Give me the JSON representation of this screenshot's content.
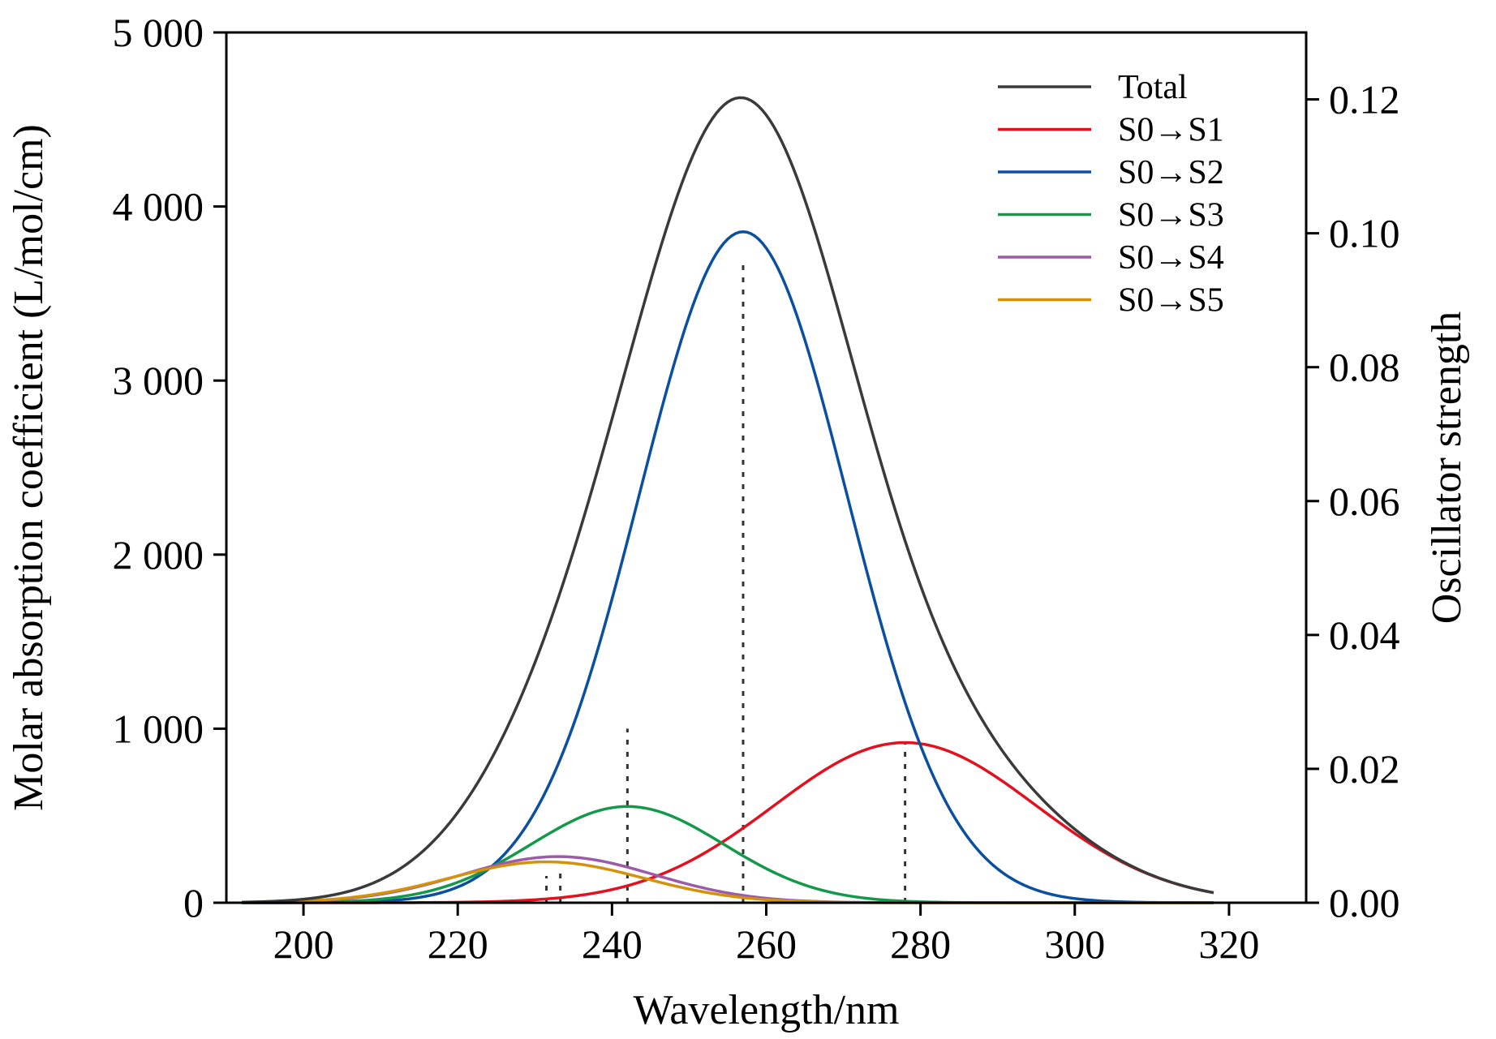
{
  "chart_data": {
    "type": "line",
    "title": "",
    "xlabel": "Wavelength/nm",
    "ylabel": "Molar absorption coefficient (L/mol/cm)",
    "y2label": "Oscillator strength",
    "xlim": [
      190,
      330
    ],
    "ylim": [
      0,
      5000
    ],
    "y2lim": [
      0,
      0.13
    ],
    "x_ticks": [
      200,
      220,
      240,
      260,
      280,
      300,
      320
    ],
    "x_tick_labels": [
      "200",
      "220",
      "240",
      "260",
      "280",
      "300",
      "320"
    ],
    "y_ticks": [
      0,
      1000,
      2000,
      3000,
      4000,
      5000
    ],
    "y_tick_labels": [
      "0",
      "1 000",
      "2 000",
      "3 000",
      "4 000",
      "5 000"
    ],
    "y2_ticks": [
      0,
      0.02,
      0.04,
      0.06,
      0.08,
      0.1,
      0.12
    ],
    "y2_tick_labels": [
      "0.00",
      "0.02",
      "0.04",
      "0.06",
      "0.08",
      "0.10",
      "0.12"
    ],
    "grid": false,
    "legend_position": "top-right",
    "x_range": [
      192,
      318
    ],
    "series": [
      {
        "name": "Total",
        "color": "#3a3a3a",
        "peaks": [
          {
            "center": 278,
            "height": 920,
            "sigma": 17
          },
          {
            "center": 257,
            "height": 3855,
            "sigma": 13.5
          },
          {
            "center": 242,
            "height": 553,
            "sigma": 12.5
          },
          {
            "center": 233,
            "height": 265,
            "sigma": 12.5
          },
          {
            "center": 231.5,
            "height": 235,
            "sigma": 12.5
          }
        ]
      },
      {
        "name": "S0→S1",
        "color": "#e3101e",
        "peaks": [
          {
            "center": 278,
            "height": 920,
            "sigma": 17
          }
        ]
      },
      {
        "name": "S0→S2",
        "color": "#0a4fa0",
        "peaks": [
          {
            "center": 257,
            "height": 3855,
            "sigma": 13.5
          }
        ]
      },
      {
        "name": "S0→S3",
        "color": "#14994a",
        "peaks": [
          {
            "center": 242,
            "height": 553,
            "sigma": 12.5
          }
        ]
      },
      {
        "name": "S0→S4",
        "color": "#9b5ba8",
        "peaks": [
          {
            "center": 233,
            "height": 265,
            "sigma": 12.5
          }
        ]
      },
      {
        "name": "S0→S5",
        "color": "#d4920c",
        "peaks": [
          {
            "center": 231.5,
            "height": 235,
            "sigma": 12.5
          }
        ]
      }
    ],
    "oscillator_sticks": [
      {
        "x": 278,
        "f": 0.024
      },
      {
        "x": 257,
        "f": 0.096
      },
      {
        "x": 242,
        "f": 0.026
      },
      {
        "x": 233.3,
        "f": 0.005
      },
      {
        "x": 231.5,
        "f": 0.004
      }
    ]
  }
}
